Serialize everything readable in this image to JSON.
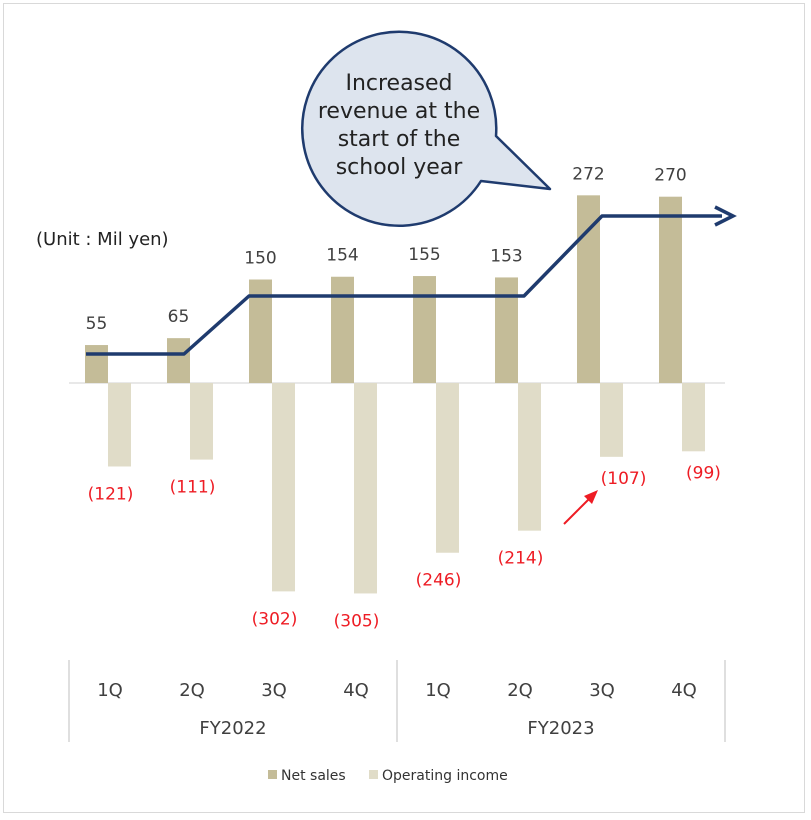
{
  "chart_data": {
    "type": "bar",
    "unit_label": "(Unit : Mil yen)",
    "groups": [
      {
        "label": "FY2022",
        "categories": [
          "1Q",
          "2Q",
          "3Q",
          "4Q"
        ]
      },
      {
        "label": "FY2023",
        "categories": [
          "1Q",
          "2Q",
          "3Q",
          "4Q"
        ]
      }
    ],
    "series": [
      {
        "name": "Net sales",
        "color": "#c4bc98",
        "values": [
          55,
          65,
          150,
          154,
          155,
          153,
          272,
          270
        ],
        "labels": [
          "55",
          "65",
          "150",
          "154",
          "155",
          "153",
          "272",
          "270"
        ]
      },
      {
        "name": "Operating income",
        "color": "#e0dcc8",
        "values": [
          -121,
          -111,
          -302,
          -305,
          -246,
          -214,
          -107,
          -99
        ],
        "labels": [
          "(121)",
          "(111)",
          "(302)",
          "(305)",
          "(246)",
          "(214)",
          "(107)",
          "(99)"
        ]
      }
    ],
    "trend_line": {
      "color": "#1f3b6e"
    },
    "annotation": {
      "lines": [
        "Increased",
        "revenue at the",
        "start of the",
        "school year"
      ]
    },
    "highlight_arrow": {
      "color": "#ee1c24"
    }
  }
}
